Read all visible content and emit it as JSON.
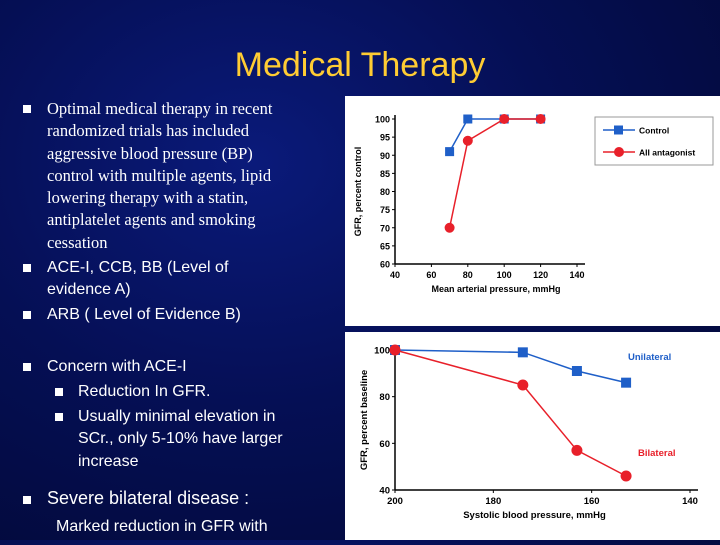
{
  "slide": {
    "title": "Medical Therapy",
    "bullets": [
      {
        "text_lines": [
          "Optimal medical therapy in recent",
          "randomized trials has included",
          "aggressive blood pressure (BP)",
          "control with multiple agents, lipid",
          "lowering therapy with a statin,",
          "antiplatelet agents and smoking",
          "cessation"
        ]
      },
      {
        "text_lines": [
          "ACE-I, CCB, BB (Level of",
          "evidence A)"
        ]
      },
      {
        "text_lines": [
          "ARB ( Level of Evidence B)"
        ]
      },
      {
        "text_lines": [
          "Concern with ACE-I"
        ]
      },
      {
        "text_lines": [
          "Reduction In GFR."
        ]
      },
      {
        "text_lines": [
          "Usually minimal elevation in",
          "SCr., only 5-10% have larger",
          "increase"
        ]
      },
      {
        "text_lines": [
          "Severe bilateral disease :"
        ]
      },
      {
        "text_lines": [
          "Marked reduction in GFR with"
        ]
      }
    ]
  },
  "chart_data": [
    {
      "type": "line",
      "xlabel": "Mean arterial pressure, mmHg",
      "ylabel": "GFR, percent control",
      "xlim": [
        40,
        140
      ],
      "ylim": [
        60,
        100
      ],
      "xticks": [
        "40",
        "60",
        "80",
        "100",
        "120",
        "140"
      ],
      "yticks": [
        "60",
        "65",
        "70",
        "75",
        "80",
        "85",
        "90",
        "95",
        "100"
      ],
      "legend_position": "top-right",
      "series": [
        {
          "name": "Control",
          "color": "#1f5fc8",
          "marker": "square",
          "x": [
            70,
            80,
            100,
            120
          ],
          "y": [
            91,
            100,
            100,
            100
          ]
        },
        {
          "name": "AII antagonist",
          "color": "#e8202a",
          "marker": "circle",
          "x": [
            70,
            80,
            100,
            120
          ],
          "y": [
            70,
            94,
            100,
            100
          ]
        }
      ]
    },
    {
      "type": "line",
      "xlabel": "Systolic blood pressure, mmHg",
      "ylabel": "GFR, percent baseline",
      "xlim": [
        200,
        140
      ],
      "ylim": [
        40,
        100
      ],
      "xticks": [
        "200",
        "180",
        "160",
        "140"
      ],
      "yticks": [
        "40",
        "60",
        "80",
        "100"
      ],
      "series": [
        {
          "name": "Unilateral",
          "color": "#1f5fc8",
          "marker": "square",
          "x": [
            200,
            174,
            163,
            153
          ],
          "y": [
            100,
            99,
            91,
            86
          ]
        },
        {
          "name": "Bilateral",
          "color": "#e8202a",
          "marker": "circle",
          "x": [
            200,
            174,
            163,
            153
          ],
          "y": [
            100,
            85,
            57,
            46
          ]
        }
      ]
    }
  ]
}
